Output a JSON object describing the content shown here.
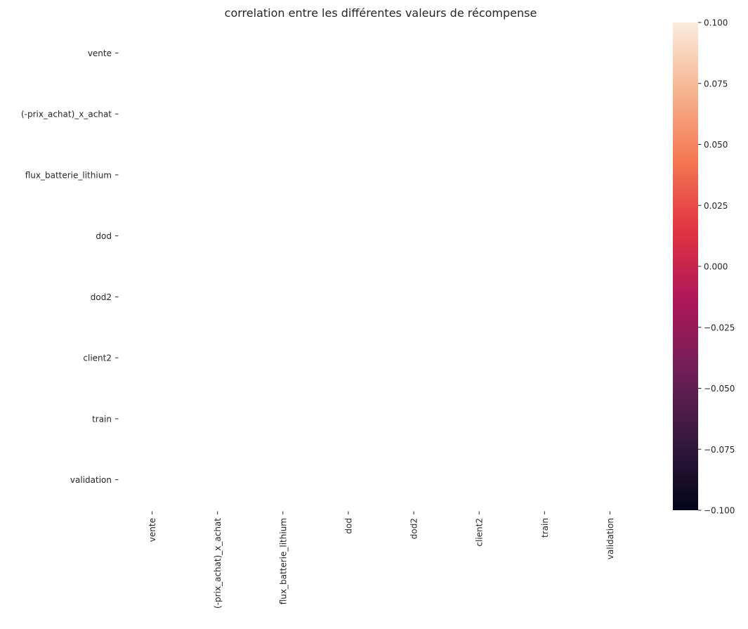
{
  "chart_data": {
    "type": "heatmap",
    "title": "correlation entre les différentes valeurs de récompense",
    "xlabel": "",
    "ylabel": "",
    "row_labels": [
      "vente",
      "(-prix_achat)_x_achat",
      "flux_batterie_lithium",
      "dod",
      "dod2",
      "client2",
      "train",
      "validation"
    ],
    "col_labels": [
      "vente",
      "(-prix_achat)_x_achat",
      "flux_batterie_lithium",
      "dod",
      "dod2",
      "client2",
      "train",
      "validation"
    ],
    "values": [
      [
        null,
        null,
        null,
        null,
        null,
        null,
        null,
        null
      ],
      [
        null,
        null,
        null,
        null,
        null,
        null,
        null,
        null
      ],
      [
        null,
        null,
        null,
        null,
        null,
        null,
        null,
        null
      ],
      [
        null,
        null,
        null,
        null,
        null,
        null,
        null,
        null
      ],
      [
        null,
        null,
        null,
        null,
        null,
        null,
        null,
        null
      ],
      [
        null,
        null,
        null,
        null,
        null,
        null,
        null,
        null
      ],
      [
        null,
        null,
        null,
        null,
        null,
        null,
        null,
        null
      ],
      [
        null,
        null,
        null,
        null,
        null,
        null,
        null,
        null
      ]
    ],
    "colorbar": {
      "range": [
        -0.1,
        0.1
      ],
      "ticks": [
        0.1,
        0.075,
        0.05,
        0.025,
        0.0,
        -0.025,
        -0.05,
        -0.075,
        -0.1
      ],
      "tick_labels": [
        "0.100",
        "0.075",
        "0.050",
        "0.025",
        "0.000",
        "−0.025",
        "−0.050",
        "−0.075",
        "−0.100"
      ],
      "colormap": "rocket",
      "stops": [
        "#03051a",
        "#36193e",
        "#701f57",
        "#ad1759",
        "#e13342",
        "#f37651",
        "#f6b48f",
        "#faebdd"
      ]
    },
    "grid": false,
    "legend": "colorbar-right"
  }
}
